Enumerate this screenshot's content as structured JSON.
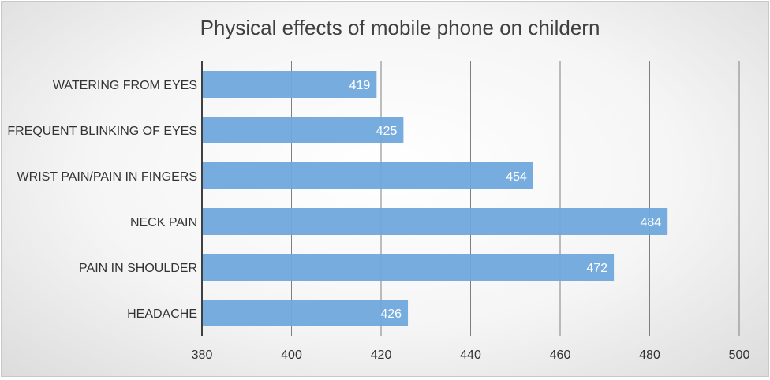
{
  "chart_data": {
    "type": "bar",
    "orientation": "horizontal",
    "title": "Physical effects of mobile phone on childern",
    "xlabel": "",
    "ylabel": "",
    "categories": [
      "WATERING FROM EYES",
      "FREQUENT BLINKING OF EYES",
      "WRIST PAIN/PAIN IN FINGERS",
      "NECK PAIN",
      "PAIN IN SHOULDER",
      "HEADACHE"
    ],
    "values": [
      419,
      425,
      454,
      484,
      472,
      426
    ],
    "xlim": [
      380,
      500
    ],
    "xticks": [
      380,
      400,
      420,
      440,
      460,
      480,
      500
    ],
    "grid": true,
    "legend": "none",
    "bar_color": "#6fa8dc",
    "data_label_color": "#ffffff"
  }
}
